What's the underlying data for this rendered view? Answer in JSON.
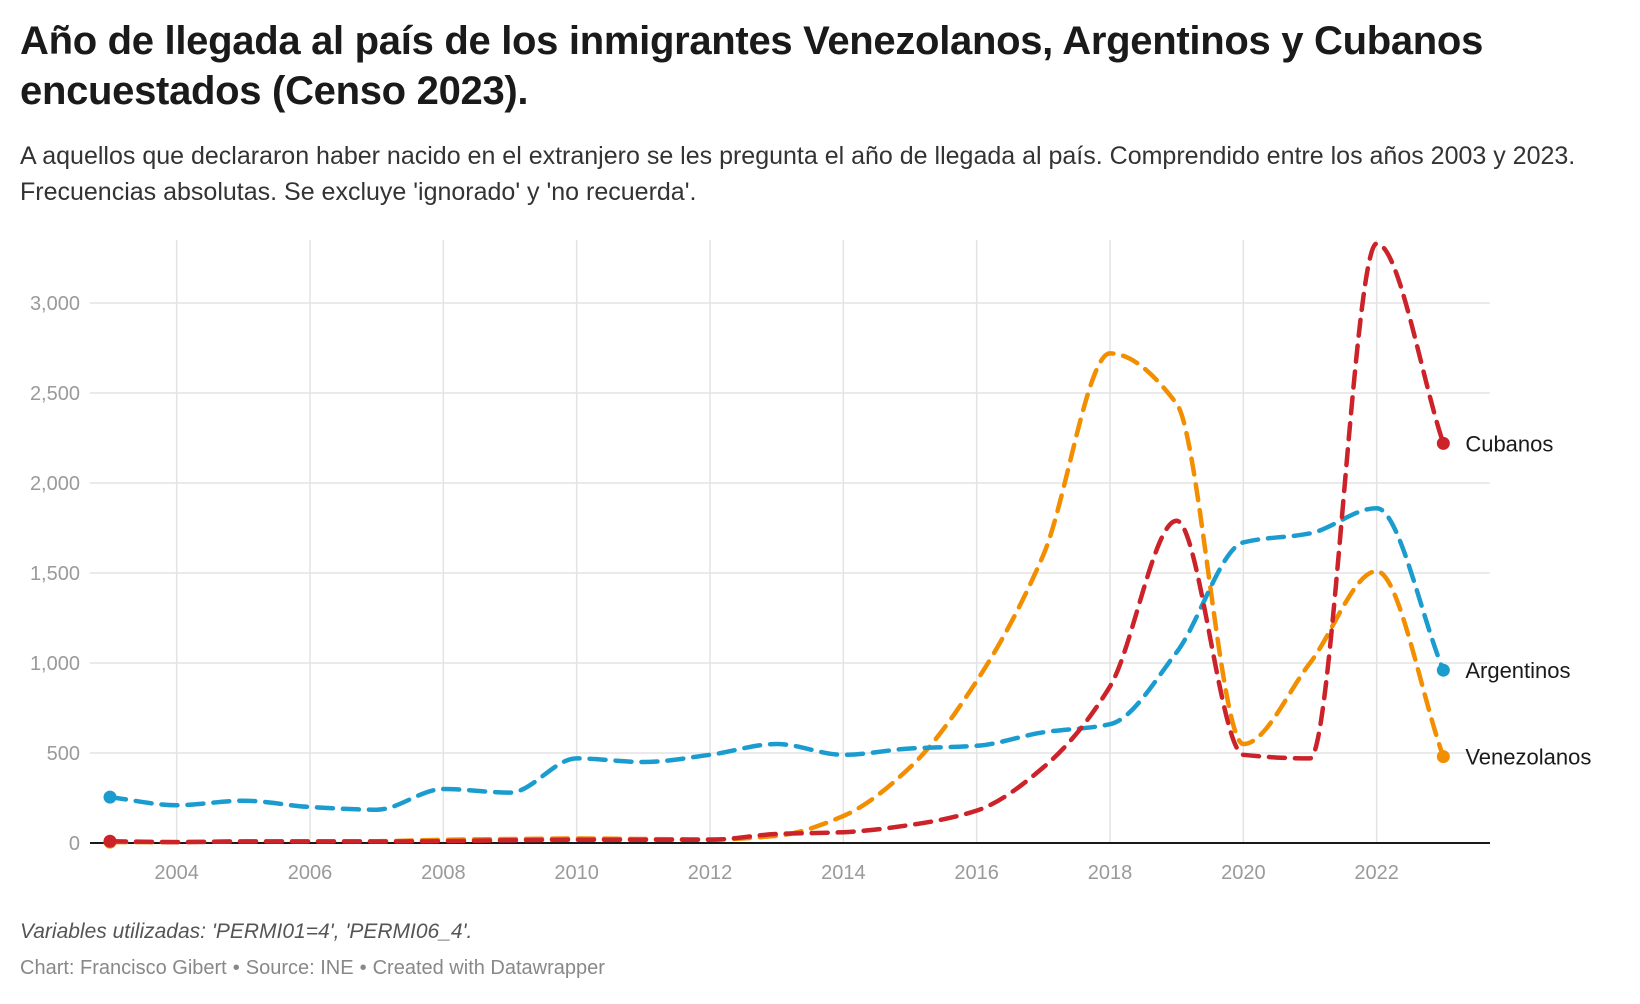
{
  "title": "Año de llegada al país de los inmigrantes Venezolanos, Argentinos y Cubanos encuestados (Censo 2023).",
  "subtitle": "A aquellos que declararon haber nacido en el extranjero se les pregunta el año de llegada al país. Comprendido entre los años 2003 y 2023. Frecuencias absolutas. Se excluye 'ignorado' y 'no recuerda'.",
  "notes": "Variables utilizadas: 'PERMI01=4', 'PERMI06_4'.",
  "byline": {
    "chart": "Chart: Francisco Gibert",
    "source": "Source: INE",
    "created": "Created with Datawrapper",
    "separator": "•"
  },
  "chart_data": {
    "type": "line",
    "title": "Año de llegada al país de los inmigrantes Venezolanos, Argentinos y Cubanos encuestados (Censo 2023).",
    "xlabel": "",
    "ylabel": "",
    "x": [
      2003,
      2004,
      2005,
      2006,
      2007,
      2008,
      2009,
      2010,
      2011,
      2012,
      2013,
      2014,
      2015,
      2016,
      2017,
      2018,
      2019,
      2020,
      2021,
      2022,
      2023
    ],
    "xlim": [
      2002.7,
      2023.7
    ],
    "ylim": [
      0,
      3350
    ],
    "x_ticks": [
      2004,
      2006,
      2008,
      2010,
      2012,
      2014,
      2016,
      2018,
      2020,
      2022
    ],
    "x_tick_labels": [
      "2004",
      "2006",
      "2008",
      "2010",
      "2012",
      "2014",
      "2016",
      "2018",
      "2020",
      "2022"
    ],
    "y_ticks": [
      0,
      500,
      1000,
      1500,
      2000,
      2500,
      3000
    ],
    "y_tick_labels": [
      "0",
      "500",
      "1,000",
      "1,500",
      "2,000",
      "2,500",
      "3,000"
    ],
    "grid": true,
    "line_style": "dashed",
    "series": [
      {
        "name": "Cubanos",
        "color": "#cc2229",
        "values": [
          10,
          5,
          8,
          8,
          8,
          10,
          15,
          18,
          18,
          18,
          50,
          60,
          100,
          180,
          420,
          870,
          1790,
          490,
          470,
          3330,
          2220
        ]
      },
      {
        "name": "Argentinos",
        "color": "#1b9ccf",
        "values": [
          255,
          210,
          235,
          200,
          185,
          300,
          280,
          470,
          450,
          490,
          550,
          490,
          525,
          540,
          615,
          660,
          1060,
          1670,
          1720,
          1860,
          960
        ]
      },
      {
        "name": "Venezolanos",
        "color": "#f28e00",
        "values": [
          5,
          5,
          10,
          10,
          10,
          18,
          22,
          25,
          22,
          20,
          40,
          150,
          420,
          900,
          1600,
          2720,
          2440,
          550,
          1000,
          1510,
          480
        ]
      }
    ]
  }
}
